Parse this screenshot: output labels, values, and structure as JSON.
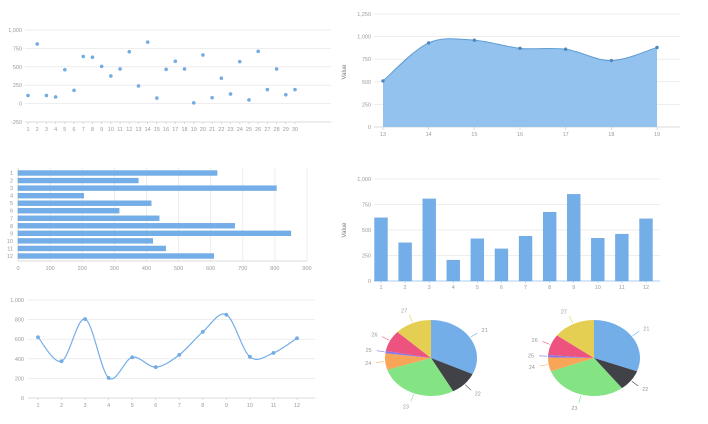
{
  "colors": {
    "series_blue": "#74aee9",
    "series_blue_dark": "#5d9cd3",
    "area_fill": "#93c2ee",
    "marker": "#4e86bf",
    "grid": "#e8e8e8",
    "axis": "#cfcfcf",
    "tick_text": "#9b9b9b",
    "axis_label": "#777777",
    "pie_label": "#999999",
    "vbar_axis": "#a9cff2"
  },
  "chart_data": [
    {
      "id": "scatter",
      "type": "scatter",
      "title": "",
      "x": [
        1,
        2,
        3,
        4,
        5,
        6,
        7,
        8,
        9,
        10,
        11,
        12,
        13,
        14,
        15,
        16,
        17,
        18,
        19,
        20,
        21,
        22,
        23,
        24,
        25,
        26,
        27,
        28,
        29,
        30
      ],
      "values": [
        110,
        810,
        110,
        90,
        460,
        180,
        640,
        630,
        505,
        375,
        470,
        705,
        240,
        835,
        75,
        465,
        575,
        470,
        10,
        660,
        80,
        345,
        130,
        570,
        50,
        710,
        190,
        470,
        120,
        190
      ],
      "ylim": [
        -250,
        1000
      ],
      "ytick_step": 250,
      "grid": true,
      "color": "#74aee9"
    },
    {
      "id": "area",
      "type": "area",
      "title": "",
      "x": [
        13,
        14,
        15,
        16,
        17,
        18,
        19
      ],
      "values": [
        510,
        930,
        960,
        870,
        860,
        735,
        880
      ],
      "ylabel": "Value",
      "ylim": [
        0,
        1250
      ],
      "ytick_step": 250,
      "grid": true,
      "color": "#74aee9"
    },
    {
      "id": "hbar",
      "type": "bar",
      "orientation": "horizontal",
      "title": "",
      "categories": [
        1,
        2,
        3,
        4,
        5,
        6,
        7,
        8,
        9,
        10,
        11,
        12
      ],
      "values": [
        620,
        375,
        805,
        205,
        415,
        315,
        440,
        675,
        850,
        420,
        460,
        610
      ],
      "xlim": [
        0,
        900
      ],
      "xtick_step": 100,
      "grid": true,
      "color": "#74aee9"
    },
    {
      "id": "vbar",
      "type": "bar",
      "orientation": "vertical",
      "title": "",
      "categories": [
        1,
        2,
        3,
        4,
        5,
        6,
        7,
        8,
        9,
        10,
        11,
        12
      ],
      "values": [
        620,
        375,
        805,
        205,
        415,
        315,
        440,
        675,
        850,
        420,
        460,
        610
      ],
      "ylabel": "Value",
      "ylim": [
        0,
        1000
      ],
      "ytick_step": 250,
      "grid": true,
      "color": "#74aee9"
    },
    {
      "id": "line",
      "type": "line",
      "title": "",
      "x": [
        1,
        2,
        3,
        4,
        5,
        6,
        7,
        8,
        9,
        10,
        11,
        12
      ],
      "values": [
        620,
        375,
        805,
        205,
        415,
        315,
        440,
        675,
        850,
        420,
        460,
        610
      ],
      "ylim": [
        0,
        1000
      ],
      "ytick_step": 200,
      "grid": true,
      "smooth": true,
      "color": "#74aee9"
    },
    {
      "id": "pie1",
      "type": "pie",
      "title": "",
      "labels": [
        "21",
        "22",
        "23",
        "24",
        "25",
        "26",
        "27"
      ],
      "values": [
        32,
        10,
        28,
        7,
        1,
        9,
        13
      ],
      "colors": [
        "#74aee9",
        "#414247",
        "#84e383",
        "#f9a558",
        "#8877ea",
        "#ee537f",
        "#e5cf52"
      ]
    },
    {
      "id": "pie2",
      "type": "pie",
      "title": "",
      "labels": [
        "21",
        "22",
        "23",
        "24",
        "25",
        "26",
        "27"
      ],
      "values": [
        31,
        9,
        30,
        6,
        1,
        9,
        15
      ],
      "colors": [
        "#74aee9",
        "#414247",
        "#84e383",
        "#f9a558",
        "#8877ea",
        "#ee537f",
        "#e5cf52"
      ]
    }
  ]
}
